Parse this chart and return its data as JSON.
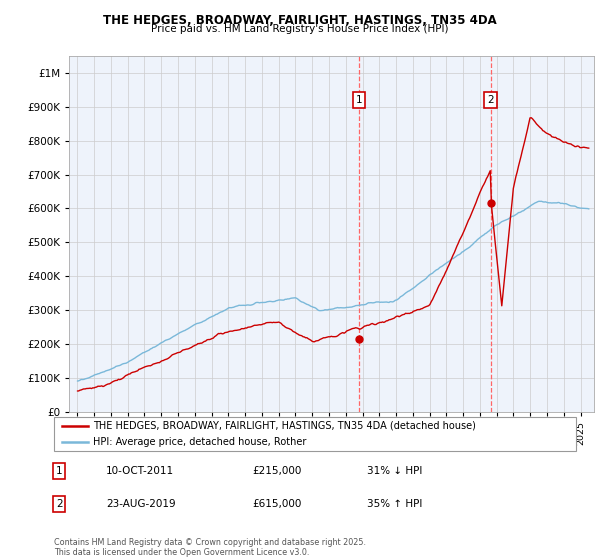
{
  "title": "THE HEDGES, BROADWAY, FAIRLIGHT, HASTINGS, TN35 4DA",
  "subtitle": "Price paid vs. HM Land Registry's House Price Index (HPI)",
  "legend_entries": [
    "THE HEDGES, BROADWAY, FAIRLIGHT, HASTINGS, TN35 4DA (detached house)",
    "HPI: Average price, detached house, Rother"
  ],
  "annotation1_date": "10-OCT-2011",
  "annotation1_price": "£215,000",
  "annotation1_hpi": "31% ↓ HPI",
  "annotation1_year": 2011.78,
  "annotation1_value": 215000,
  "annotation2_date": "23-AUG-2019",
  "annotation2_price": "£615,000",
  "annotation2_hpi": "35% ↑ HPI",
  "annotation2_year": 2019.64,
  "annotation2_value": 615000,
  "footer": "Contains HM Land Registry data © Crown copyright and database right 2025.\nThis data is licensed under the Open Government Licence v3.0.",
  "hpi_color": "#7ab8d9",
  "price_color": "#cc0000",
  "background_color": "#ffffff",
  "plot_bg_color": "#eef3fb",
  "grid_color": "#cccccc",
  "vline_color": "#ff6666",
  "ylim": [
    0,
    1050000
  ],
  "xlim_start": 1994.5,
  "xlim_end": 2025.8,
  "yticks": [
    0,
    100000,
    200000,
    300000,
    400000,
    500000,
    600000,
    700000,
    800000,
    900000,
    1000000
  ],
  "xticks": [
    1995,
    1996,
    1997,
    1998,
    1999,
    2000,
    2001,
    2002,
    2003,
    2004,
    2005,
    2006,
    2007,
    2008,
    2009,
    2010,
    2011,
    2012,
    2013,
    2014,
    2015,
    2016,
    2017,
    2018,
    2019,
    2020,
    2021,
    2022,
    2023,
    2024,
    2025
  ]
}
